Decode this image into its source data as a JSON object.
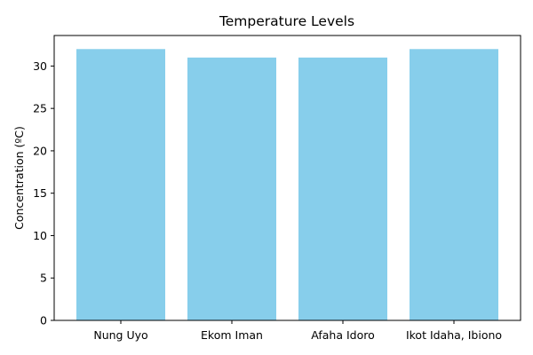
{
  "chart_data": {
    "type": "bar",
    "title": "Temperature Levels",
    "xlabel": "",
    "ylabel": "Concentration (ºC)",
    "categories": [
      "Nung Uyo",
      "Ekom Iman",
      "Afaha Idoro",
      "Ikot Idaha, Ibiono"
    ],
    "values": [
      32,
      31,
      31,
      32
    ],
    "ylim": [
      0,
      33.6
    ],
    "yticks": [
      0,
      5,
      10,
      15,
      20,
      25,
      30
    ],
    "bar_color": "#87CEEB",
    "grid": false,
    "legend": "none"
  }
}
